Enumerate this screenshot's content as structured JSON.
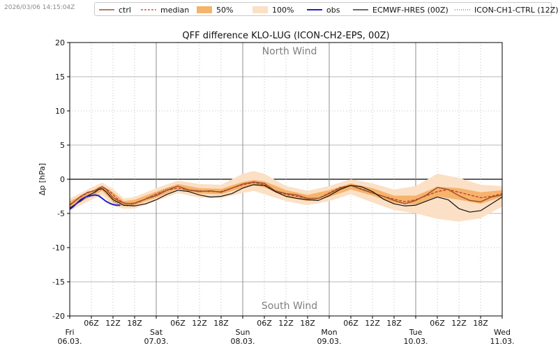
{
  "timestamp": "2026/03/06 14:15:04Z",
  "legend": {
    "ctrl": "ctrl",
    "median": "median",
    "p50": "50%",
    "p100": "100%",
    "obs": "obs",
    "ecmwf": "ECMWF-HRES (00Z)",
    "icon_ch1": "ICON-CH1-CTRL (12Z)"
  },
  "colors": {
    "ctrl": "#a0522d",
    "median": "#c0392b",
    "band50": "#f6b36b",
    "band100": "#fbe0c5",
    "obs": "#1f1fd1",
    "ecmwf": "#111111",
    "icon_ch1": "#444444"
  },
  "chart_data": {
    "type": "line",
    "title": "QFF difference KLO-LUG (ICON-CH2-EPS, 00Z)",
    "xlabel": "",
    "ylabel": "Δp [hPa]",
    "ylim": [
      -20,
      20
    ],
    "y_ticks": [
      -20,
      -15,
      -10,
      -5,
      0,
      5,
      10,
      15,
      20
    ],
    "xlim_hours": [
      0,
      120
    ],
    "annotations": {
      "top": "North Wind",
      "bottom": "South Wind"
    },
    "x_day_labels": [
      {
        "hour": 0,
        "day": "Fri",
        "date": "06.03."
      },
      {
        "hour": 24,
        "day": "Sat",
        "date": "07.03."
      },
      {
        "hour": 48,
        "day": "Sun",
        "date": "08.03."
      },
      {
        "hour": 72,
        "day": "Mon",
        "date": "09.03."
      },
      {
        "hour": 96,
        "day": "Tue",
        "date": "10.03."
      },
      {
        "hour": 120,
        "day": "Wed",
        "date": "11.03."
      }
    ],
    "x_hour_ticks": [
      "06Z",
      "12Z",
      "18Z"
    ],
    "series": [
      {
        "name": "ctrl",
        "style": "solid",
        "x": [
          0,
          3,
          5,
          7,
          8,
          9,
          10,
          12,
          14,
          16,
          18,
          21,
          24,
          27,
          30,
          33,
          36,
          39,
          42,
          45,
          48,
          51,
          54,
          57,
          60,
          63,
          66,
          69,
          72,
          75,
          78,
          81,
          84,
          87,
          90,
          93,
          96,
          99,
          102,
          105,
          108,
          111,
          114,
          117,
          120
        ],
        "y": [
          -3.8,
          -2.5,
          -1.9,
          -1.7,
          -1.3,
          -1.1,
          -1.4,
          -2.7,
          -3.3,
          -3.6,
          -3.5,
          -2.9,
          -2.4,
          -1.6,
          -1.0,
          -1.6,
          -1.8,
          -1.7,
          -1.9,
          -1.3,
          -0.7,
          -0.4,
          -0.6,
          -1.7,
          -2.1,
          -2.3,
          -2.8,
          -2.8,
          -2.1,
          -1.3,
          -0.9,
          -1.5,
          -2.0,
          -2.5,
          -3.1,
          -3.6,
          -3.1,
          -2.3,
          -1.2,
          -1.5,
          -2.4,
          -3.1,
          -3.3,
          -2.6,
          -2.3
        ]
      },
      {
        "name": "median",
        "style": "dashed",
        "x": [
          0,
          3,
          5,
          7,
          9,
          11,
          13,
          15,
          17,
          19,
          21,
          24,
          27,
          30,
          33,
          36,
          39,
          42,
          45,
          48,
          51,
          54,
          57,
          60,
          63,
          66,
          69,
          72,
          75,
          78,
          81,
          84,
          87,
          90,
          93,
          96,
          99,
          102,
          105,
          108,
          111,
          114,
          117,
          120
        ],
        "y": [
          -3.7,
          -2.6,
          -2.0,
          -1.6,
          -1.2,
          -1.7,
          -2.8,
          -3.5,
          -3.6,
          -3.4,
          -2.9,
          -2.2,
          -1.6,
          -1.3,
          -1.6,
          -1.7,
          -1.8,
          -1.8,
          -1.3,
          -0.8,
          -0.5,
          -0.8,
          -1.8,
          -2.2,
          -2.5,
          -2.8,
          -2.8,
          -2.0,
          -1.2,
          -0.9,
          -1.4,
          -2.0,
          -2.5,
          -2.9,
          -3.3,
          -3.0,
          -2.4,
          -1.8,
          -1.5,
          -1.9,
          -2.3,
          -2.7,
          -2.5,
          -2.1
        ]
      },
      {
        "name": "obs",
        "style": "solid",
        "x": [
          0,
          1,
          2,
          3,
          4,
          5,
          6,
          7,
          8,
          9,
          10,
          11,
          12,
          13,
          14
        ],
        "y": [
          -4.4,
          -4.0,
          -3.5,
          -3.0,
          -2.7,
          -2.5,
          -2.4,
          -2.3,
          -2.4,
          -2.8,
          -3.2,
          -3.5,
          -3.7,
          -3.8,
          -3.8
        ]
      },
      {
        "name": "ECMWF-HRES (00Z)",
        "style": "solid",
        "x": [
          0,
          3,
          5,
          7,
          8,
          9,
          10,
          12,
          15,
          18,
          21,
          24,
          27,
          30,
          33,
          36,
          39,
          42,
          45,
          48,
          51,
          54,
          57,
          60,
          63,
          66,
          69,
          72,
          75,
          78,
          81,
          84,
          87,
          90,
          93,
          96,
          99,
          102,
          105,
          108,
          111,
          114,
          117,
          120
        ],
        "y": [
          -4.2,
          -3.2,
          -2.4,
          -1.9,
          -1.5,
          -1.4,
          -1.8,
          -3.0,
          -3.8,
          -3.9,
          -3.6,
          -3.0,
          -2.2,
          -1.6,
          -1.8,
          -2.3,
          -2.6,
          -2.5,
          -2.1,
          -1.3,
          -0.8,
          -0.9,
          -1.8,
          -2.5,
          -2.8,
          -3.0,
          -3.1,
          -2.4,
          -1.5,
          -0.9,
          -1.1,
          -1.8,
          -2.9,
          -3.6,
          -3.9,
          -3.8,
          -3.2,
          -2.6,
          -3.0,
          -4.3,
          -4.8,
          -4.6,
          -3.6,
          -2.6
        ]
      },
      {
        "name": "ICON-CH1-CTRL (12Z)",
        "style": "dotted",
        "x": [
          12,
          14,
          16,
          18,
          20,
          22,
          24,
          27,
          30,
          33,
          36
        ],
        "y": [
          -3.3,
          -3.8,
          -3.9,
          -3.6,
          -3.1,
          -2.6,
          -2.1,
          -1.4,
          -1.0,
          -1.5,
          -1.7
        ]
      }
    ],
    "bands": [
      {
        "name": "50%",
        "x": [
          0,
          6,
          9,
          12,
          15,
          18,
          24,
          30,
          36,
          42,
          48,
          51,
          54,
          60,
          66,
          72,
          78,
          84,
          90,
          96,
          102,
          108,
          114,
          120
        ],
        "upper": [
          -3.2,
          -1.7,
          -0.9,
          -1.9,
          -3.2,
          -3.0,
          -1.8,
          -0.7,
          -1.3,
          -1.4,
          -0.4,
          -0.1,
          -0.3,
          -1.6,
          -2.3,
          -1.6,
          -0.6,
          -1.3,
          -2.4,
          -2.4,
          -1.1,
          -1.3,
          -1.9,
          -1.6
        ],
        "lower": [
          -4.2,
          -2.5,
          -1.7,
          -3.3,
          -3.9,
          -3.8,
          -2.7,
          -1.4,
          -2.1,
          -2.2,
          -1.3,
          -0.9,
          -1.2,
          -2.6,
          -3.2,
          -2.6,
          -1.5,
          -2.4,
          -3.5,
          -3.7,
          -2.5,
          -3.0,
          -3.6,
          -2.6
        ]
      },
      {
        "name": "100%",
        "x": [
          0,
          6,
          9,
          12,
          15,
          18,
          24,
          30,
          36,
          42,
          48,
          51,
          54,
          60,
          66,
          72,
          78,
          84,
          90,
          96,
          102,
          108,
          114,
          120
        ],
        "upper": [
          -2.8,
          -1.2,
          -0.5,
          -1.4,
          -2.8,
          -2.6,
          -1.3,
          -0.2,
          -0.7,
          -0.8,
          0.8,
          1.2,
          0.8,
          -1.0,
          -1.7,
          -1.0,
          0.0,
          -0.6,
          -1.5,
          -1.0,
          0.8,
          0.2,
          -0.8,
          -1.0
        ],
        "lower": [
          -4.6,
          -3.0,
          -2.3,
          -3.9,
          -4.3,
          -4.3,
          -3.2,
          -2.0,
          -2.7,
          -2.8,
          -2.0,
          -1.7,
          -2.2,
          -3.2,
          -3.8,
          -3.2,
          -2.2,
          -3.4,
          -4.5,
          -5.0,
          -5.8,
          -6.2,
          -5.7,
          -4.0
        ]
      }
    ]
  }
}
